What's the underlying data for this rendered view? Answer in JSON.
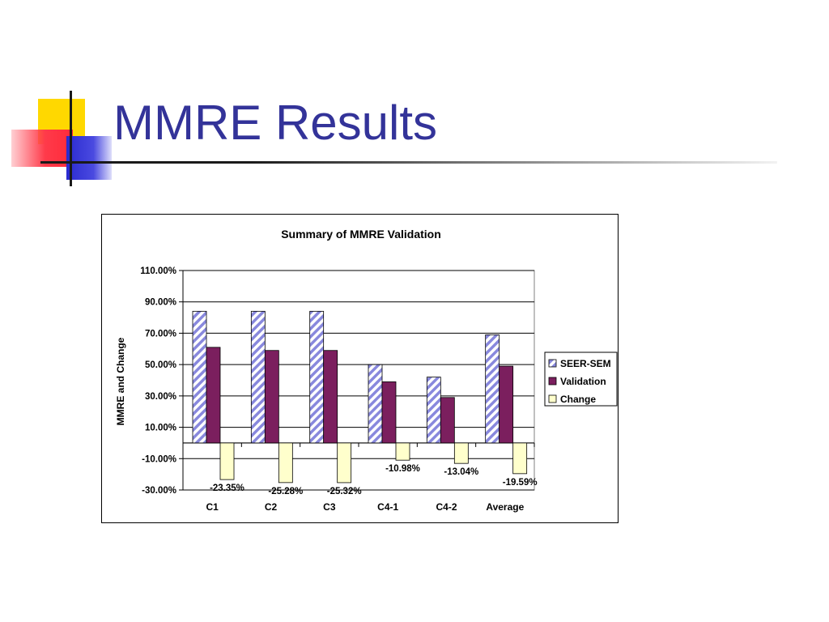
{
  "slide": {
    "title": "MMRE Results"
  },
  "colors": {
    "title": "#333399",
    "seer": "#8888dd",
    "validation": "#7b1f5e",
    "change": "#ffffcc"
  },
  "chart_data": {
    "type": "bar",
    "title": "Summary of MMRE Validation",
    "ylabel": "MMRE and Change",
    "xlabel": "",
    "ylim": [
      -30,
      110
    ],
    "yticks": [
      "110.00%",
      "90.00%",
      "70.00%",
      "50.00%",
      "30.00%",
      "10.00%",
      "-10.00%",
      "-30.00%"
    ],
    "categories": [
      "C1",
      "C2",
      "C3",
      "C4-1",
      "C4-2",
      "Average"
    ],
    "series": [
      {
        "name": "SEER-SEM",
        "values": [
          84,
          84,
          84,
          50,
          42,
          69
        ]
      },
      {
        "name": "Validation",
        "values": [
          61,
          59,
          59,
          39,
          29,
          49
        ]
      },
      {
        "name": "Change",
        "values": [
          -23.35,
          -25.28,
          -25.32,
          -10.98,
          -13.04,
          -19.59
        ],
        "labels": [
          "-23.35%",
          "-25.28%",
          "-25.32%",
          "-10.98%",
          "-13.04%",
          "-19.59%"
        ]
      }
    ],
    "grid": true,
    "legend": "right"
  }
}
